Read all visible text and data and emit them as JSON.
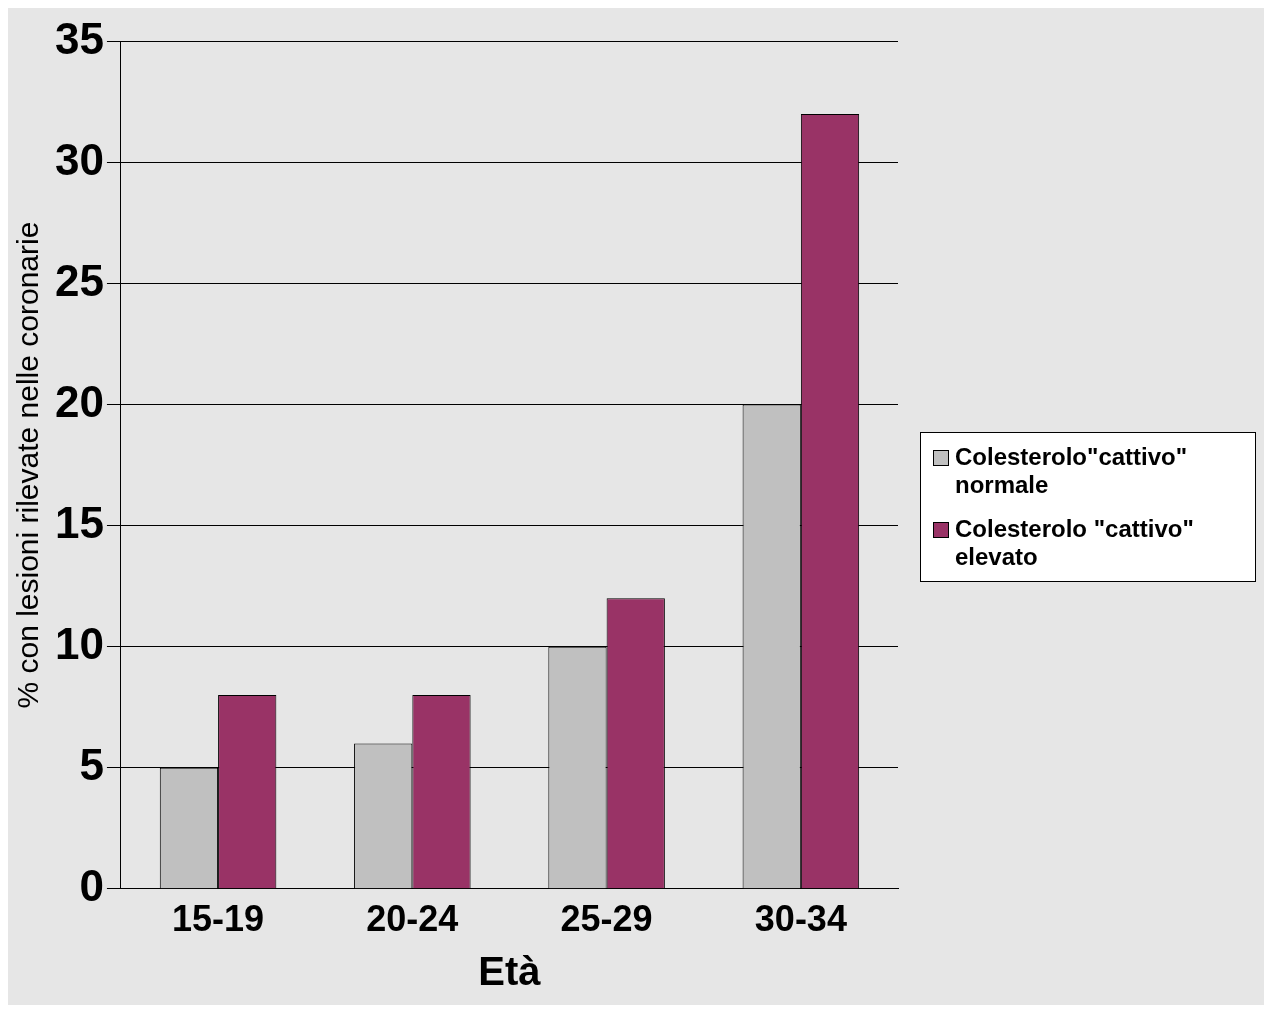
{
  "chart_data": {
    "type": "bar",
    "xlabel": "Età",
    "ylabel": "% con lesioni rilevate nelle coronarie",
    "categories": [
      "15-19",
      "20-24",
      "25-29",
      "30-34"
    ],
    "series": [
      {
        "name": "Colesterolo\"cattivo\" normale",
        "color": "#c0c0c0",
        "values": [
          5,
          6,
          10,
          20
        ]
      },
      {
        "name": "Colesterolo \"cattivo\" elevato",
        "color": "#993366",
        "values": [
          8,
          8,
          12,
          32
        ]
      }
    ],
    "ylim": [
      0,
      35
    ],
    "yticks": [
      0,
      5,
      10,
      15,
      20,
      25,
      30,
      35
    ],
    "grid": "y",
    "legend": "right"
  }
}
